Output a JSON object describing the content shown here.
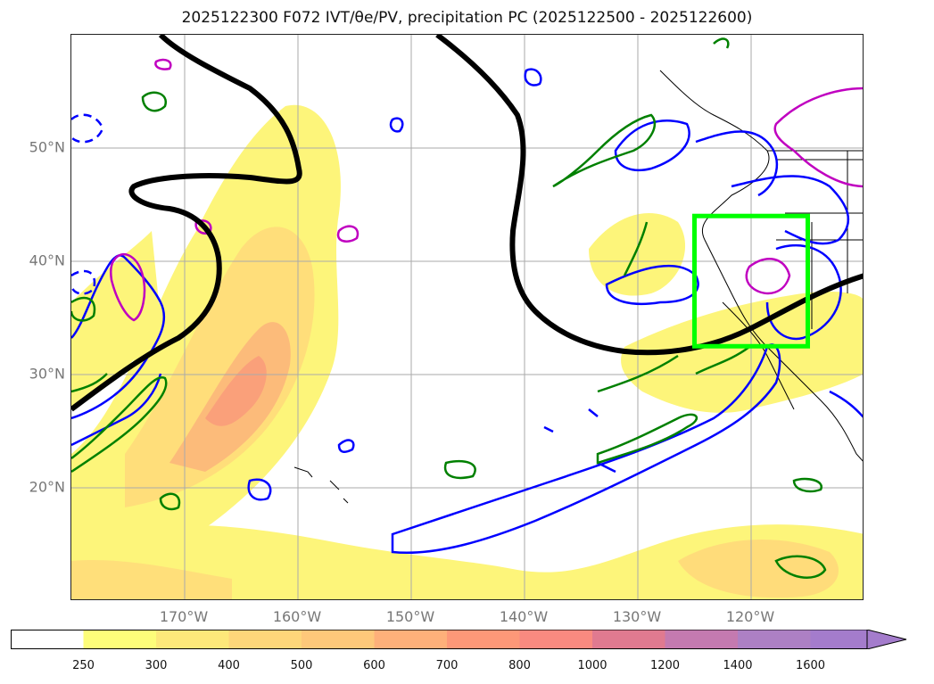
{
  "header": {
    "title": "2025122300 F072 IVT/θe/PV, precipitation PC (2025122500 - 2025122600)"
  },
  "map": {
    "latitude_labels": [
      {
        "value": 20,
        "label": "20°N"
      },
      {
        "value": 30,
        "label": "30°N"
      },
      {
        "value": 40,
        "label": "40°N"
      },
      {
        "value": 50,
        "label": "50°N"
      }
    ],
    "longitude_labels": [
      {
        "value": -170,
        "label": "170°W"
      },
      {
        "value": -160,
        "label": "160°W"
      },
      {
        "value": -150,
        "label": "150°W"
      },
      {
        "value": -140,
        "label": "140°W"
      },
      {
        "value": -130,
        "label": "130°W"
      },
      {
        "value": -120,
        "label": "120°W"
      }
    ],
    "extent": {
      "lon_min": -180,
      "lon_max": -110,
      "lat_min": 10,
      "lat_max": 60
    },
    "colors": {
      "ivt_fill_low": "#fdf57a",
      "ivt_fill_mid": "#ffd97a",
      "ivt_fill_high": "#f99b7a",
      "contour_blue": "#0000ff",
      "contour_green": "#008000",
      "contour_magenta": "#c000c0",
      "pv_line": "#000000",
      "highlight_box": "#00ff00"
    },
    "highlight_box": {
      "lon_min": -125,
      "lon_max": -115,
      "lat_min": 32.5,
      "lat_max": 44
    }
  },
  "colorbar": {
    "ticks": [
      "250",
      "300",
      "400",
      "500",
      "600",
      "700",
      "800",
      "1000",
      "1200",
      "1400",
      "1600"
    ],
    "colors": [
      "#ffffff",
      "#fdfd7a",
      "#fde87a",
      "#fed67a",
      "#fec87a",
      "#feb07a",
      "#fd9878",
      "#f98a80",
      "#e07a90",
      "#c47ab0",
      "#ad80c4",
      "#a47ccc"
    ]
  }
}
